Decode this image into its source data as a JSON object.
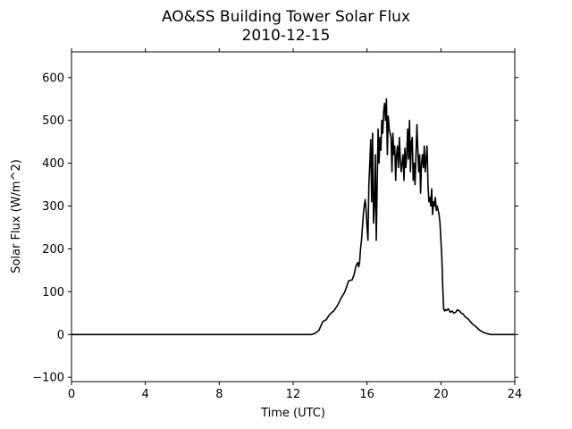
{
  "chart_data": {
    "type": "line",
    "title": "AO&SS Building Tower Solar Flux",
    "subtitle": "2010-12-15",
    "xlabel": "Time (UTC)",
    "ylabel": "Solar Flux (W/m^2)",
    "xlim": [
      0,
      24
    ],
    "ylim": [
      -110,
      660
    ],
    "xticks": [
      0,
      4,
      8,
      12,
      16,
      20,
      24
    ],
    "xtick_labels": [
      "0",
      "4",
      "8",
      "12",
      "16",
      "20",
      "24"
    ],
    "yticks": [
      -100,
      0,
      100,
      200,
      300,
      400,
      500,
      600
    ],
    "ytick_labels": [
      "−100",
      "0",
      "100",
      "200",
      "300",
      "400",
      "500",
      "600"
    ],
    "grid": false,
    "line_color": "#000000",
    "series": [
      {
        "x": [
          0,
          12.9,
          13.0,
          13.2,
          13.4,
          13.6,
          13.8,
          13.9,
          14.0,
          14.2,
          14.4,
          14.6,
          14.8,
          15.0,
          15.2,
          15.3,
          15.4,
          15.5,
          15.55,
          15.6,
          15.65,
          15.7,
          15.75,
          15.8,
          15.85,
          15.9,
          15.95,
          16.0,
          16.05,
          16.1,
          16.15,
          16.2,
          16.25,
          16.3,
          16.35,
          16.4,
          16.45,
          16.5,
          16.55,
          16.6,
          16.65,
          16.7,
          16.75,
          16.8,
          16.85,
          16.9,
          16.95,
          17.0,
          17.05,
          17.1,
          17.15,
          17.2,
          17.25,
          17.3,
          17.35,
          17.4,
          17.45,
          17.5,
          17.55,
          17.6,
          17.65,
          17.7,
          17.75,
          17.8,
          17.85,
          17.9,
          17.95,
          18.0,
          18.05,
          18.1,
          18.15,
          18.2,
          18.25,
          18.3,
          18.35,
          18.4,
          18.45,
          18.5,
          18.55,
          18.6,
          18.65,
          18.7,
          18.75,
          18.8,
          18.85,
          18.9,
          18.95,
          19.0,
          19.05,
          19.1,
          19.15,
          19.2,
          19.25,
          19.3,
          19.35,
          19.4,
          19.45,
          19.5,
          19.55,
          19.6,
          19.65,
          19.7,
          19.75,
          19.8,
          19.85,
          19.9,
          19.95,
          20.0,
          20.05,
          20.1,
          20.15,
          20.2,
          20.25,
          20.3,
          20.4,
          20.5,
          20.6,
          20.7,
          20.8,
          20.9,
          21.0,
          21.1,
          21.2,
          21.3,
          21.5,
          21.7,
          21.9,
          22.1,
          22.3,
          22.5,
          22.7,
          23.0,
          23.5,
          24.0
        ],
        "y": [
          0,
          0,
          0,
          3,
          10,
          30,
          35,
          42,
          48,
          55,
          68,
          85,
          100,
          125,
          128,
          140,
          160,
          168,
          158,
          170,
          200,
          220,
          250,
          280,
          300,
          315,
          290,
          250,
          220,
          350,
          400,
          455,
          310,
          470,
          260,
          300,
          420,
          220,
          350,
          480,
          400,
          460,
          430,
          500,
          470,
          520,
          540,
          500,
          550,
          420,
          510,
          480,
          470,
          460,
          380,
          470,
          420,
          440,
          360,
          420,
          440,
          390,
          460,
          410,
          380,
          400,
          420,
          360,
          435,
          390,
          420,
          480,
          410,
          500,
          380,
          450,
          460,
          360,
          400,
          350,
          420,
          490,
          430,
          380,
          420,
          330,
          400,
          420,
          390,
          440,
          380,
          410,
          440,
          350,
          310,
          320,
          300,
          340,
          280,
          310,
          300,
          320,
          290,
          300,
          290,
          280,
          260,
          220,
          180,
          110,
          60,
          55,
          58,
          56,
          60,
          52,
          55,
          50,
          52,
          58,
          55,
          50,
          48,
          42,
          35,
          25,
          18,
          10,
          5,
          2,
          0,
          0,
          0,
          0
        ]
      }
    ]
  }
}
